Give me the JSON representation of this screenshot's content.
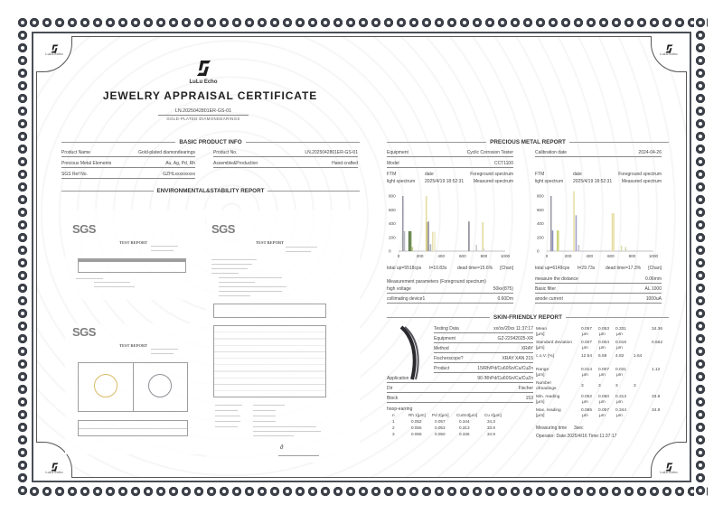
{
  "brand": {
    "name": "LuLu Echo"
  },
  "header": {
    "title": "JEWELRY APPRAISAL CERTIFICATE",
    "cert_no": "LN.2025042801ER-GS-01",
    "subtitle": "GOLD-PLATED DIAMONDEARINGS"
  },
  "basic": {
    "title": "BASIC PRODUCT INFO",
    "fields": [
      {
        "label": "Product Name",
        "value": "Gold-plated diamondearings"
      },
      {
        "label": "Precious Metal Elements",
        "value": "Au, Ag, Pd, Rh"
      },
      {
        "label": "SGS Ref No.",
        "value": "GZHLxxxxxxxxx"
      },
      {
        "label": "Product No.",
        "value": "LN.2025042801ER-GS-01"
      },
      {
        "label": "Assemble&Production",
        "value": "Hand-crafted"
      }
    ]
  },
  "env": {
    "title": "ENVIRONMENTAL&STABILITY REPORT",
    "docs": [
      {
        "logo": "SGS",
        "heading": "TEST REPORT"
      },
      {
        "logo": "SGS",
        "heading": "TEST REPORT"
      },
      {
        "logo": "SGS",
        "heading": "TEST REPORT"
      }
    ]
  },
  "precious": {
    "title": "PRECIOUS METAL REPORT",
    "fields": [
      {
        "label": "Equipment",
        "value": "Cyclic Corrosion Tester"
      },
      {
        "label": "Model",
        "value": "CCT1100"
      },
      {
        "label": "Calibration date",
        "value": "2024-04-26"
      }
    ],
    "spectra": [
      {
        "h1": "FTM",
        "h2": "date",
        "h3": "Foreground spectrum",
        "l1": "light spectrum",
        "l2": "2025/4/19 18:52:31",
        "l3": "Measured spectrum",
        "total": "total up=5518cps",
        "t": "t=10.83s",
        "dead": "dead time=15.6%",
        "unit": "[Chan]"
      },
      {
        "h1": "FTM",
        "h2": "date",
        "h3": "Foreground spectrum",
        "l1": "light spectrum",
        "l2": "2025/4/19 18:52:31",
        "l3": "Measured spectrum",
        "total": "total up=6149cps",
        "t": "t=29.73s",
        "dead": "dead time=17.3%",
        "unit": "[Chan]"
      }
    ],
    "params_title": "Measurement parameters (Foreground spectrum)",
    "params": [
      {
        "label": "high voltage",
        "value": "50kv(875)"
      },
      {
        "label": "collimating device1",
        "value": "0.60Dm"
      },
      {
        "label": "measure the distance",
        "value": "0.06mm"
      },
      {
        "label": "Basic filter",
        "value": "AL 1000"
      },
      {
        "label": "anode current",
        "value": "1000uA"
      }
    ]
  },
  "chart_data": [
    {
      "type": "bar",
      "xlim": [
        0,
        1000
      ],
      "ylim": [
        0,
        800
      ],
      "xticks": [
        "0",
        "200",
        "400",
        "600",
        "800",
        "1000"
      ],
      "yticks": [
        "0",
        "200",
        "400",
        "600",
        "800"
      ],
      "peaks": [
        [
          40,
          800,
          "#9a9aa6"
        ],
        [
          55,
          290,
          "#b8b8c4"
        ],
        [
          100,
          290,
          "#4c6a3a"
        ],
        [
          115,
          290,
          "#6e8a4a"
        ],
        [
          130,
          60,
          "#c8cc90"
        ],
        [
          260,
          800,
          "#e2dca0"
        ],
        [
          265,
          420,
          "#d6c880"
        ],
        [
          280,
          430,
          "#8c8c96"
        ],
        [
          300,
          100,
          "#b0b0b8"
        ],
        [
          320,
          280,
          "#e8e0b0"
        ],
        [
          340,
          280,
          "#eee8c8"
        ],
        [
          660,
          430,
          "#8c8c96"
        ],
        [
          730,
          90,
          "#c8c8d0"
        ],
        [
          790,
          420,
          "#e2dca0"
        ],
        [
          800,
          40,
          "#d8d8d8"
        ]
      ]
    },
    {
      "type": "bar",
      "xlim": [
        0,
        1000
      ],
      "ylim": [
        0,
        800
      ],
      "xticks": [
        "0",
        "200",
        "400",
        "600",
        "800",
        "1000"
      ],
      "yticks": [
        "0",
        "200",
        "400",
        "600",
        "800"
      ],
      "peaks": [
        [
          40,
          800,
          "#9a9aa6"
        ],
        [
          55,
          300,
          "#9090c0"
        ],
        [
          100,
          300,
          "#c8d070"
        ],
        [
          110,
          300,
          "#d8dc90"
        ],
        [
          255,
          870,
          "#e8e0a0"
        ],
        [
          275,
          520,
          "#a0a0d0"
        ],
        [
          300,
          90,
          "#c0c0c8"
        ],
        [
          615,
          550,
          "#e6dca0"
        ],
        [
          630,
          550,
          "#ece4b8"
        ],
        [
          700,
          80,
          "#d8e0b0"
        ],
        [
          740,
          60,
          "#d0d8b0"
        ]
      ]
    }
  ],
  "skin": {
    "title": "SKIN-FRIENDLY REPORT",
    "fields": [
      {
        "label": "Testing Data",
        "value": "xx/xx/20xx 11:37:17"
      },
      {
        "label": "Equipment",
        "value": "GZ-22042025-XR"
      },
      {
        "label": "Method",
        "value": "XRAY"
      },
      {
        "label": "Fischerscope?",
        "value": "XRAY XAN 215"
      },
      {
        "label": "Product",
        "value": "15/Rh/Pd/Cu60Sn/Cu/CuZn"
      },
      {
        "label": "Application",
        "value": "90 /RhPd/Cu60Sn/Cu/CuZn"
      },
      {
        "label": "Dir",
        "value": "Fischer"
      },
      {
        "label": "Block",
        "value": "153"
      }
    ],
    "hoop": {
      "title": "hoop-earring",
      "headers": [
        "n",
        "Rh 1[μm]",
        "Pd 2[μm]",
        "CuSn3[μm]",
        "Cu 4[μm]"
      ],
      "rows": [
        [
          "1",
          "0.052",
          "0.057",
          "0.344",
          "34.3"
        ],
        [
          "2",
          "0.055",
          "0.053",
          "0.313",
          "33.8"
        ],
        [
          "3",
          "0.065",
          "0.050",
          "0.336",
          "34.9"
        ]
      ]
    },
    "stats": [
      {
        "label": "Mean",
        "unit": "[μm]",
        "vals": [
          "0.057",
          "0.053",
          "0.331",
          "",
          "34.36"
        ],
        "u": true
      },
      {
        "label": "Standard deviation",
        "unit": "[μm]",
        "vals": [
          "0.007",
          "0.004",
          "0.016",
          "",
          "0.562"
        ],
        "u": true
      },
      {
        "label": "c.o.V. [%]",
        "unit": "",
        "vals": [
          "12.54",
          "6.59",
          "4.82",
          "1.64",
          ""
        ],
        "u": false
      },
      {
        "label": "Range",
        "unit": "[μm]",
        "vals": [
          "0.014",
          "0.007",
          "0.031",
          "",
          "1.12"
        ],
        "u": true
      },
      {
        "label": "Number",
        "unit": "ofreadings",
        "vals": [
          "3",
          "3",
          "3",
          "3",
          ""
        ],
        "u": false
      },
      {
        "label": "Min. reading",
        "unit": "[μm]",
        "vals": [
          "0.052",
          "0.050",
          "0.313",
          "",
          "33.8"
        ],
        "u": true
      },
      {
        "label": "Max. reading",
        "unit": "[μm]",
        "vals": [
          "0.065",
          "0.057",
          "0.344",
          "",
          "34.9"
        ],
        "u": true
      }
    ],
    "unit_label": "μm",
    "measuring_time_label": "Measuring time",
    "measuring_time": "3sec",
    "operator": "Operator: Date:2025/4/16 Time:11:37:17"
  }
}
